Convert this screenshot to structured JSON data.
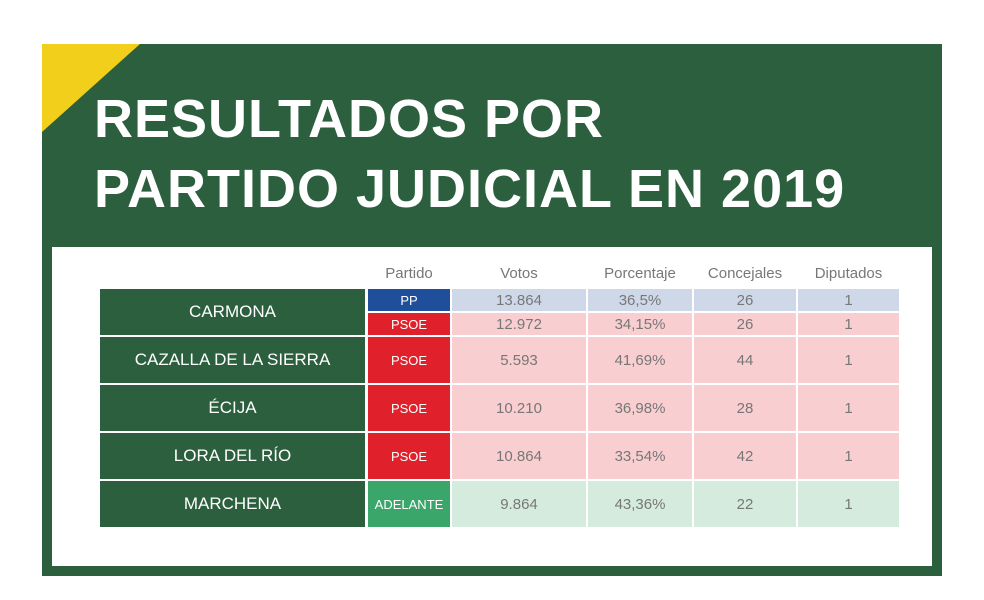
{
  "header": {
    "title_lines": [
      "RESULTADOS POR",
      "PARTIDO JUDICIAL EN 2019"
    ]
  },
  "table": {
    "columns": [
      "Partido",
      "Votos",
      "Porcentaje",
      "Concejales",
      "Diputados"
    ],
    "rows": [
      {
        "name": "CARMONA",
        "parties": [
          {
            "party": "PP",
            "color": "#1f4f9a",
            "cells": [
              "13.864",
              "36,5%",
              "26",
              "1"
            ]
          },
          {
            "party": "PSOE",
            "color": "#e0202a",
            "cells": [
              "12.972",
              "34,15%",
              "26",
              "1"
            ]
          }
        ]
      },
      {
        "name": "CAZALLA DE LA SIERRA",
        "parties": [
          {
            "party": "PSOE",
            "color": "#e0202a",
            "cells": [
              "5.593",
              "41,69%",
              "44",
              "1"
            ]
          }
        ]
      },
      {
        "name": "ÉCIJA",
        "parties": [
          {
            "party": "PSOE",
            "color": "#e0202a",
            "cells": [
              "10.210",
              "36,98%",
              "28",
              "1"
            ]
          }
        ]
      },
      {
        "name": "LORA DEL RÍO",
        "parties": [
          {
            "party": "PSOE",
            "color": "#e0202a",
            "cells": [
              "10.864",
              "33,54%",
              "42",
              "1"
            ]
          }
        ]
      },
      {
        "name": "MARCHENA",
        "parties": [
          {
            "party": "ADELANTE",
            "color": "#3aa66a",
            "cells": [
              "9.864",
              "43,36%",
              "22",
              "1"
            ]
          }
        ]
      }
    ]
  }
}
